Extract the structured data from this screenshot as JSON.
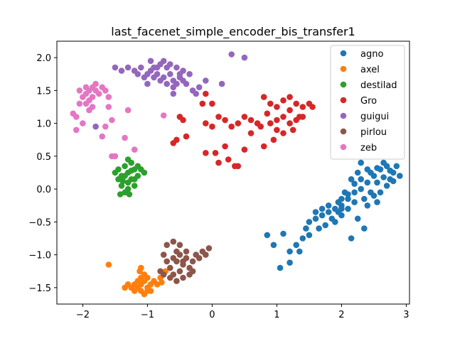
{
  "chart_data": {
    "type": "scatter",
    "title": "last_facenet_simple_encoder_bis_transfer1",
    "xlabel": "",
    "ylabel": "",
    "xlim": [
      -2.4,
      3.05
    ],
    "ylim": [
      -1.75,
      2.25
    ],
    "xticks": [
      -2,
      -1,
      0,
      1,
      2,
      3
    ],
    "yticks": [
      -1.5,
      -1.0,
      -0.5,
      0.0,
      0.5,
      1.0,
      1.5,
      2.0
    ],
    "xtick_labels": [
      "−2",
      "−1",
      "0",
      "1",
      "2",
      "3"
    ],
    "ytick_labels": [
      "−1.5",
      "−1.0",
      "−0.5",
      "0.0",
      "0.5",
      "1.0",
      "1.5",
      "2.0"
    ],
    "grid": false,
    "legend_position": "top-right",
    "series": [
      {
        "name": "agno",
        "color": "#1f77b4",
        "points": [
          [
            2.6,
            0.3
          ],
          [
            2.7,
            0.35
          ],
          [
            2.5,
            0.2
          ],
          [
            2.4,
            0.1
          ],
          [
            2.3,
            0.0
          ],
          [
            2.2,
            -0.05
          ],
          [
            2.1,
            -0.15
          ],
          [
            2.0,
            -0.25
          ],
          [
            1.9,
            -0.3
          ],
          [
            1.8,
            -0.35
          ],
          [
            1.7,
            -0.4
          ],
          [
            1.6,
            -0.45
          ],
          [
            1.5,
            -0.5
          ],
          [
            2.8,
            0.25
          ],
          [
            2.75,
            0.15
          ],
          [
            2.65,
            0.4
          ],
          [
            2.55,
            0.1
          ],
          [
            2.45,
            -0.05
          ],
          [
            2.35,
            -0.15
          ],
          [
            2.25,
            0.25
          ],
          [
            2.15,
            0.15
          ],
          [
            2.05,
            -0.05
          ],
          [
            1.95,
            -0.2
          ],
          [
            1.85,
            -0.45
          ],
          [
            1.75,
            -0.55
          ],
          [
            1.65,
            -0.6
          ],
          [
            2.9,
            0.2
          ],
          [
            2.85,
            0.35
          ],
          [
            2.7,
            0.05
          ],
          [
            2.6,
            -0.05
          ],
          [
            2.5,
            -0.1
          ],
          [
            2.4,
            0.3
          ],
          [
            2.3,
            0.4
          ],
          [
            2.2,
            -0.2
          ],
          [
            2.1,
            -0.3
          ],
          [
            2.0,
            -0.4
          ],
          [
            1.9,
            -0.5
          ],
          [
            1.8,
            -0.25
          ],
          [
            1.7,
            -0.3
          ],
          [
            1.6,
            -0.35
          ],
          [
            1.45,
            -0.6
          ],
          [
            1.4,
            -0.75
          ],
          [
            1.3,
            -0.85
          ],
          [
            1.2,
            -0.95
          ],
          [
            1.1,
            -0.68
          ],
          [
            1.05,
            -1.2
          ],
          [
            0.95,
            -0.85
          ],
          [
            0.85,
            -0.7
          ],
          [
            1.2,
            -1.12
          ],
          [
            1.35,
            -0.95
          ],
          [
            1.5,
            -0.7
          ],
          [
            2.55,
            -0.2
          ],
          [
            2.35,
            -0.6
          ],
          [
            2.15,
            -0.75
          ],
          [
            2.45,
            0.25
          ],
          [
            2.55,
            0.32
          ],
          [
            2.65,
            0.18
          ],
          [
            2.75,
            0.28
          ],
          [
            2.8,
            0.12
          ],
          [
            2.0,
            -0.15
          ],
          [
            1.95,
            -0.35
          ],
          [
            2.25,
            -0.45
          ],
          [
            2.4,
            -0.25
          ],
          [
            2.3,
            0.15
          ],
          [
            2.2,
            0.08
          ],
          [
            2.1,
            -0.08
          ],
          [
            2.0,
            -0.3
          ]
        ]
      },
      {
        "name": "axel",
        "color": "#ff7f0e",
        "points": [
          [
            -1.1,
            -1.45
          ],
          [
            -1.15,
            -1.5
          ],
          [
            -1.05,
            -1.4
          ],
          [
            -1.0,
            -1.5
          ],
          [
            -1.2,
            -1.45
          ],
          [
            -1.25,
            -1.5
          ],
          [
            -0.95,
            -1.45
          ],
          [
            -1.1,
            -1.55
          ],
          [
            -1.05,
            -1.6
          ],
          [
            -1.15,
            -1.4
          ],
          [
            -1.3,
            -1.45
          ],
          [
            -0.9,
            -1.4
          ],
          [
            -1.0,
            -1.55
          ],
          [
            -1.2,
            -1.55
          ],
          [
            -1.1,
            -1.35
          ],
          [
            -1.05,
            -1.3
          ],
          [
            -1.12,
            -1.25
          ],
          [
            -1.35,
            -1.5
          ],
          [
            -0.85,
            -1.45
          ],
          [
            -0.8,
            -1.35
          ],
          [
            -0.72,
            -1.25
          ],
          [
            -0.78,
            -1.42
          ],
          [
            -1.6,
            -1.15
          ],
          [
            -1.1,
            -1.2
          ],
          [
            -1.0,
            -1.35
          ],
          [
            -0.95,
            -1.55
          ]
        ]
      },
      {
        "name": "destilad",
        "color": "#2ca02c",
        "points": [
          [
            -1.35,
            0.2
          ],
          [
            -1.3,
            0.25
          ],
          [
            -1.25,
            0.15
          ],
          [
            -1.3,
            0.1
          ],
          [
            -1.4,
            0.2
          ],
          [
            -1.2,
            0.3
          ],
          [
            -1.35,
            0.35
          ],
          [
            -1.45,
            0.15
          ],
          [
            -1.25,
            0.4
          ],
          [
            -1.15,
            0.2
          ],
          [
            -1.3,
            0.0
          ],
          [
            -1.4,
            0.05
          ],
          [
            -1.2,
            0.05
          ],
          [
            -1.1,
            0.3
          ],
          [
            -1.05,
            0.25
          ],
          [
            -1.5,
            0.25
          ],
          [
            -1.45,
            0.3
          ],
          [
            -1.3,
            0.45
          ],
          [
            -1.35,
            -0.05
          ],
          [
            -1.2,
            0.15
          ],
          [
            -1.25,
            0.28
          ],
          [
            -1.38,
            0.12
          ],
          [
            -1.28,
            -0.08
          ],
          [
            -1.42,
            -0.08
          ],
          [
            -1.15,
            0.35
          ]
        ]
      },
      {
        "name": "Gro",
        "color": "#d62728",
        "points": [
          [
            0.8,
            1.4
          ],
          [
            0.9,
            1.3
          ],
          [
            1.0,
            1.25
          ],
          [
            1.1,
            1.35
          ],
          [
            1.2,
            1.4
          ],
          [
            1.3,
            1.3
          ],
          [
            1.4,
            1.25
          ],
          [
            1.5,
            1.3
          ],
          [
            1.55,
            1.25
          ],
          [
            0.9,
            1.0
          ],
          [
            1.0,
            1.05
          ],
          [
            1.1,
            1.1
          ],
          [
            1.2,
            1.0
          ],
          [
            1.3,
            1.05
          ],
          [
            1.4,
            1.1
          ],
          [
            0.7,
            1.0
          ],
          [
            0.6,
            1.05
          ],
          [
            0.5,
            1.1
          ],
          [
            0.4,
            1.0
          ],
          [
            0.3,
            0.95
          ],
          [
            0.2,
            1.05
          ],
          [
            0.1,
            1.1
          ],
          [
            0.0,
            0.95
          ],
          [
            -0.1,
            1.0
          ],
          [
            -0.15,
            1.3
          ],
          [
            0.0,
            1.3
          ],
          [
            -0.1,
            1.45
          ],
          [
            0.5,
            0.6
          ],
          [
            0.4,
            0.35
          ],
          [
            0.35,
            0.35
          ],
          [
            0.25,
            0.45
          ],
          [
            0.1,
            0.4
          ],
          [
            -0.1,
            0.55
          ],
          [
            0.05,
            0.55
          ],
          [
            0.2,
            0.65
          ],
          [
            -0.5,
            1.1
          ],
          [
            -0.55,
            0.75
          ],
          [
            -0.6,
            0.7
          ],
          [
            -0.45,
            1.05
          ],
          [
            -0.4,
            0.8
          ],
          [
            0.8,
            0.65
          ],
          [
            0.95,
            0.75
          ],
          [
            1.0,
            0.9
          ],
          [
            1.1,
            0.85
          ],
          [
            1.25,
            0.9
          ],
          [
            1.35,
            1.1
          ],
          [
            1.2,
            1.2
          ],
          [
            0.85,
            1.15
          ],
          [
            0.75,
            0.95
          ],
          [
            0.6,
            0.85
          ]
        ]
      },
      {
        "name": "guigui",
        "color": "#9467bd",
        "points": [
          [
            -1.0,
            1.75
          ],
          [
            -0.95,
            1.8
          ],
          [
            -0.9,
            1.85
          ],
          [
            -0.85,
            1.75
          ],
          [
            -0.8,
            1.9
          ],
          [
            -0.75,
            1.7
          ],
          [
            -1.05,
            1.7
          ],
          [
            -1.1,
            1.85
          ],
          [
            -1.15,
            1.75
          ],
          [
            -1.2,
            1.8
          ],
          [
            -0.7,
            1.85
          ],
          [
            -0.65,
            1.75
          ],
          [
            -0.6,
            1.65
          ],
          [
            -0.55,
            1.6
          ],
          [
            -0.5,
            1.75
          ],
          [
            -0.45,
            1.8
          ],
          [
            -1.3,
            1.85
          ],
          [
            -1.4,
            1.8
          ],
          [
            -0.9,
            1.7
          ],
          [
            -0.8,
            1.65
          ],
          [
            -0.7,
            1.6
          ],
          [
            -0.6,
            1.55
          ],
          [
            -0.5,
            1.7
          ],
          [
            -0.4,
            1.6
          ],
          [
            -0.3,
            1.5
          ],
          [
            -0.25,
            1.45
          ],
          [
            -0.6,
            1.45
          ],
          [
            0.3,
            2.05
          ],
          [
            0.5,
            2.0
          ],
          [
            -0.1,
            1.65
          ],
          [
            -1.5,
            1.85
          ],
          [
            -1.8,
            0.95
          ],
          [
            -0.95,
            1.95
          ],
          [
            -0.75,
            1.95
          ],
          [
            -0.85,
            1.85
          ],
          [
            -1.0,
            1.6
          ],
          [
            -0.65,
            1.9
          ],
          [
            -0.55,
            1.85
          ],
          [
            -0.45,
            1.65
          ],
          [
            -0.35,
            1.75
          ],
          [
            0.15,
            1.6
          ],
          [
            -0.2,
            1.55
          ]
        ]
      },
      {
        "name": "pirlou",
        "color": "#8c564b",
        "points": [
          [
            -0.6,
            -1.05
          ],
          [
            -0.55,
            -1.1
          ],
          [
            -0.5,
            -1.0
          ],
          [
            -0.45,
            -1.15
          ],
          [
            -0.4,
            -1.05
          ],
          [
            -0.65,
            -1.2
          ],
          [
            -0.7,
            -1.1
          ],
          [
            -0.75,
            -1.0
          ],
          [
            -0.5,
            -1.25
          ],
          [
            -0.35,
            -1.2
          ],
          [
            -0.3,
            -1.1
          ],
          [
            -0.25,
            -1.0
          ],
          [
            -0.2,
            -1.05
          ],
          [
            -0.15,
            -0.95
          ],
          [
            -0.05,
            -0.9
          ],
          [
            -0.55,
            -0.95
          ],
          [
            -0.6,
            -1.3
          ],
          [
            -0.65,
            -1.35
          ],
          [
            -0.45,
            -1.35
          ],
          [
            -0.4,
            -0.95
          ],
          [
            -0.7,
            -0.85
          ],
          [
            -0.6,
            -0.8
          ],
          [
            -0.5,
            -0.85
          ],
          [
            -0.8,
            -1.25
          ],
          [
            -0.75,
            -1.3
          ],
          [
            -0.55,
            -1.4
          ],
          [
            -0.35,
            -1.3
          ],
          [
            -0.1,
            -1.0
          ],
          [
            -0.45,
            -1.1
          ],
          [
            -0.3,
            -1.25
          ]
        ]
      },
      {
        "name": "zeb",
        "color": "#e377c2",
        "points": [
          [
            -1.9,
            1.5
          ],
          [
            -1.95,
            1.45
          ],
          [
            -1.85,
            1.55
          ],
          [
            -2.0,
            1.4
          ],
          [
            -1.8,
            1.5
          ],
          [
            -1.75,
            1.45
          ],
          [
            -2.05,
            1.3
          ],
          [
            -2.1,
            1.1
          ],
          [
            -2.15,
            1.15
          ],
          [
            -2.1,
            0.9
          ],
          [
            -2.0,
            1.0
          ],
          [
            -1.95,
            1.3
          ],
          [
            -1.9,
            1.35
          ],
          [
            -1.85,
            1.25
          ],
          [
            -1.7,
            1.55
          ],
          [
            -1.65,
            1.5
          ],
          [
            -1.6,
            1.25
          ],
          [
            -1.6,
            1.4
          ],
          [
            -1.55,
            1.05
          ],
          [
            -1.65,
            0.95
          ],
          [
            -1.7,
            0.8
          ],
          [
            -1.55,
            0.5
          ],
          [
            -1.5,
            0.5
          ],
          [
            -1.3,
            1.2
          ],
          [
            -1.35,
            0.78
          ],
          [
            -1.2,
            0.6
          ],
          [
            -0.75,
            1.12
          ],
          [
            -1.8,
            1.6
          ],
          [
            -1.95,
            1.55
          ],
          [
            -2.05,
            1.5
          ],
          [
            -1.85,
            1.4
          ],
          [
            -1.9,
            1.2
          ]
        ]
      }
    ]
  }
}
